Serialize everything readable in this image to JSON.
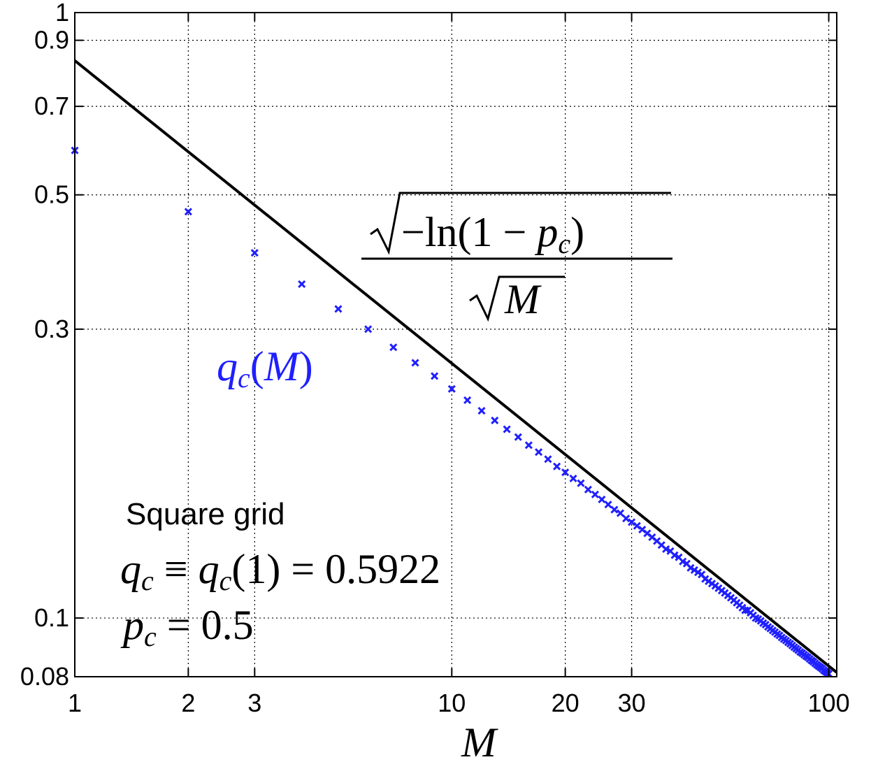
{
  "chart_data": {
    "type": "scatter",
    "xlabel": "M",
    "xlim": [
      1,
      105
    ],
    "ylim": [
      0.08,
      1
    ],
    "xscale": "log",
    "yscale": "log",
    "xticks": [
      1,
      2,
      3,
      10,
      20,
      30,
      100
    ],
    "yticks": [
      0.08,
      0.1,
      0.3,
      0.5,
      0.7,
      0.9,
      1
    ],
    "grid": true,
    "series": [
      {
        "style": "x",
        "color": "#1f1fff",
        "x": [
          1,
          2,
          3,
          4,
          5,
          6,
          7,
          8,
          9,
          10,
          11,
          12,
          13,
          14,
          15,
          16,
          17,
          18,
          19,
          20,
          21,
          22,
          23,
          24,
          25,
          26,
          27,
          28,
          29,
          30,
          31,
          32,
          33,
          34,
          35,
          36,
          37,
          38,
          39,
          40,
          41,
          42,
          43,
          44,
          45,
          46,
          47,
          48,
          49,
          50,
          51,
          52,
          53,
          54,
          55,
          56,
          57,
          58,
          59,
          60,
          61,
          62,
          63,
          64,
          65,
          66,
          67,
          68,
          69,
          70,
          71,
          72,
          73,
          74,
          75,
          76,
          77,
          78,
          79,
          80,
          81,
          82,
          83,
          84,
          85,
          86,
          87,
          88,
          89,
          90,
          91,
          92,
          93,
          94,
          95,
          96,
          97,
          98,
          99,
          100
        ],
        "values": [
          0.592,
          0.469,
          0.401,
          0.356,
          0.324,
          0.3,
          0.28,
          0.264,
          0.251,
          0.239,
          0.229,
          0.22,
          0.212,
          0.205,
          0.199,
          0.193,
          0.188,
          0.183,
          0.178,
          0.174,
          0.17,
          0.167,
          0.163,
          0.16,
          0.157,
          0.154,
          0.151,
          0.149,
          0.146,
          0.144,
          0.142,
          0.14,
          0.138,
          0.136,
          0.134,
          0.132,
          0.13,
          0.129,
          0.127,
          0.126,
          0.124,
          0.123,
          0.121,
          0.12,
          0.119,
          0.118,
          0.116,
          0.115,
          0.114,
          0.113,
          0.112,
          0.111,
          0.11,
          0.109,
          0.108,
          0.107,
          0.106,
          0.105,
          0.104,
          0.103,
          0.103,
          0.102,
          0.101,
          0.1,
          0.0996,
          0.0989,
          0.0981,
          0.0975,
          0.0967,
          0.0961,
          0.0954,
          0.0948,
          0.0941,
          0.0936,
          0.0929,
          0.0923,
          0.0918,
          0.0912,
          0.0907,
          0.0901,
          0.0895,
          0.089,
          0.0885,
          0.0879,
          0.0875,
          0.087,
          0.0865,
          0.0861,
          0.0856,
          0.0851,
          0.0847,
          0.0842,
          0.0837,
          0.0833,
          0.0829,
          0.0825,
          0.082,
          0.0816,
          0.0813,
          0.0809
        ]
      },
      {
        "style": "line",
        "color": "#000000",
        "x": [
          1,
          105
        ],
        "values": [
          0.833,
          0.0813
        ]
      }
    ],
    "annotations": {
      "curve_numerator": [
        "−",
        "ln",
        "(1 − ",
        "p",
        "c",
        ")"
      ],
      "curve_denominator": "M",
      "series_label": [
        "q",
        "c",
        "(",
        "M",
        ")"
      ],
      "grid_name": "Square grid",
      "qc_equation": [
        "q",
        "c",
        " ≡ ",
        "q",
        "c",
        "(1) = 0.5922"
      ],
      "pc_equation": [
        "p",
        "c",
        " = 0.5"
      ]
    }
  }
}
